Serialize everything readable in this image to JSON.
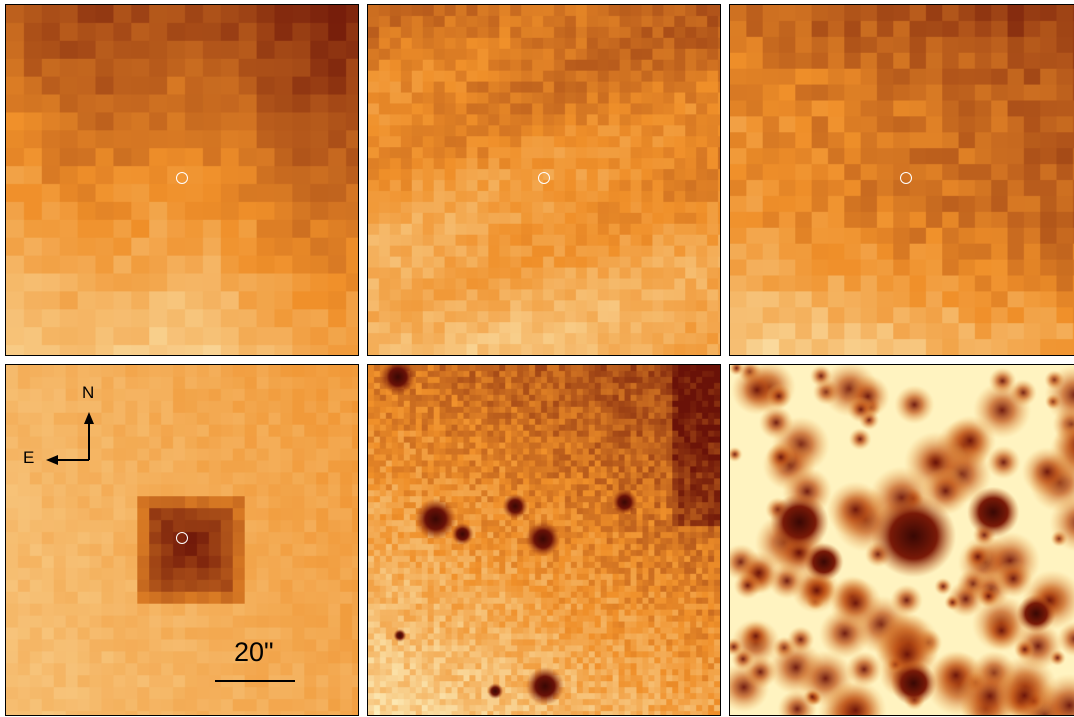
{
  "figure": {
    "panels": [
      {
        "id": "p1",
        "style": "smooth-pixel",
        "marker": true
      },
      {
        "id": "p2",
        "style": "fine-pixel",
        "marker": true
      },
      {
        "id": "p3",
        "style": "blocky-pixel",
        "marker": true
      },
      {
        "id": "p4",
        "style": "diffuse-source",
        "marker": true
      },
      {
        "id": "p5",
        "style": "point-sources",
        "marker": false
      },
      {
        "id": "p6",
        "style": "dense-sources",
        "marker": false
      }
    ],
    "compass": {
      "north": "N",
      "east": "E"
    },
    "scale_bar": {
      "label": "20\""
    },
    "colormap": {
      "low": "#fffbd0",
      "mid": "#f0902a",
      "high": "#6a1208"
    }
  }
}
